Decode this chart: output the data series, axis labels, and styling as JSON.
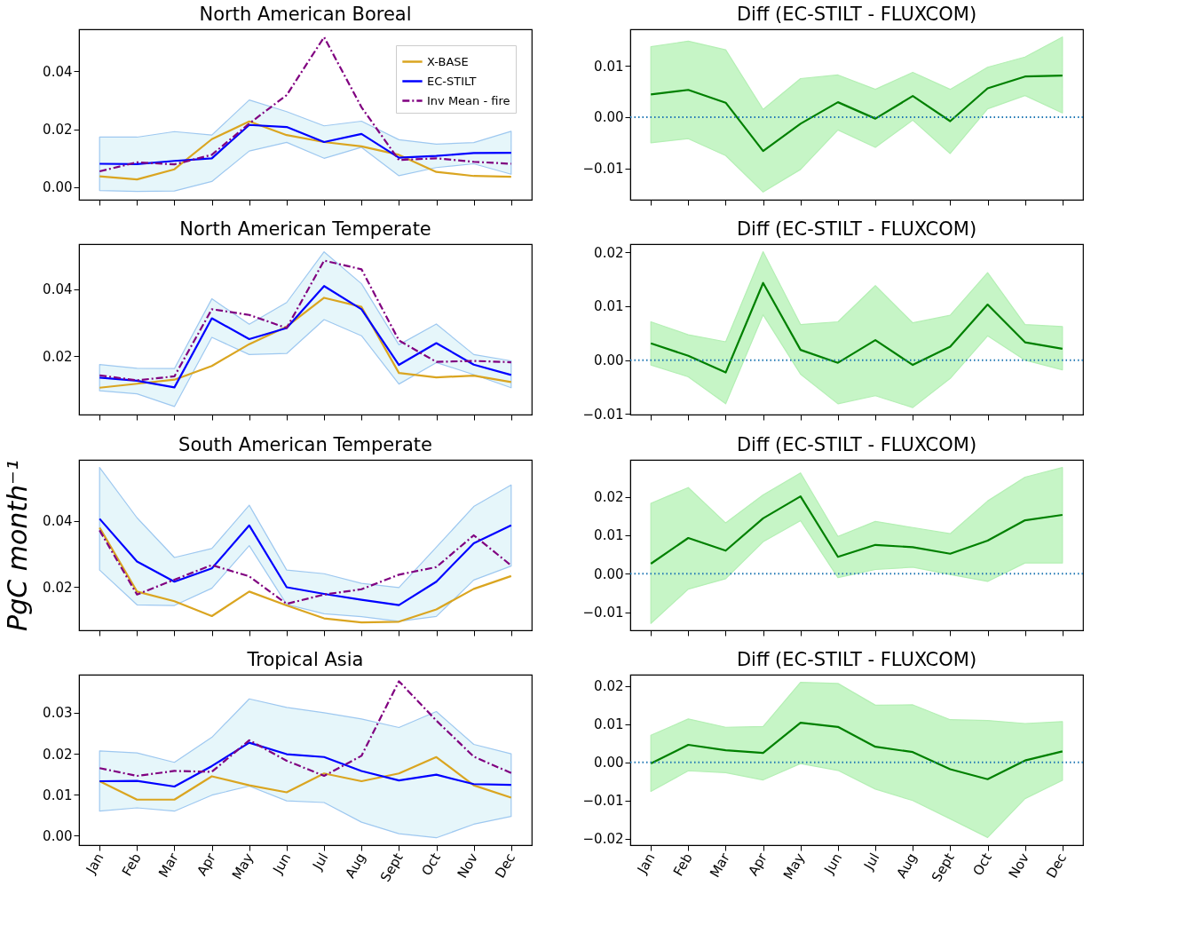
{
  "chart_data": [
    {
      "type": "line",
      "title": "North American Boreal",
      "categories": [
        null,
        null,
        null,
        null,
        null,
        null,
        null,
        null,
        null,
        null,
        null,
        null
      ],
      "ylim": [
        -0.0043,
        0.0545
      ],
      "yticks": [
        {
          "value": 0,
          "label": "0.00"
        },
        0.02,
        0.04
      ],
      "tick_labels": "y",
      "legend": "top right",
      "series": [
        {
          "name": "X-BASE",
          "color": "#daa520",
          "line_style": "solid",
          "values": [
            0.0038,
            0.0027,
            0.0062,
            0.0166,
            0.0227,
            0.018,
            0.0156,
            0.0141,
            0.0112,
            0.0053,
            0.0039,
            0.0036
          ]
        },
        {
          "name": "EC-STILT",
          "color": "#0000ff",
          "line_style": "solid",
          "values": [
            0.0081,
            0.008,
            0.0091,
            0.01,
            0.0215,
            0.0208,
            0.0156,
            0.0184,
            0.0102,
            0.0108,
            0.0118,
            0.0119
          ],
          "lower": [
            -0.0011,
            -0.0014,
            -0.0013,
            0.002,
            0.0125,
            0.0155,
            0.01,
            0.0138,
            0.004,
            0.0068,
            0.0081,
            0.0045
          ],
          "upper": [
            0.0173,
            0.0173,
            0.0192,
            0.018,
            0.0301,
            0.0261,
            0.0212,
            0.0228,
            0.0164,
            0.0149,
            0.0154,
            0.0193
          ]
        },
        {
          "name": "Inv Mean - fire",
          "color": "#800080",
          "line_style": "dashdot",
          "values": [
            0.0055,
            0.0086,
            0.0079,
            0.0112,
            0.022,
            0.0318,
            0.0518,
            0.0276,
            0.0094,
            0.01,
            0.0088,
            0.0081
          ]
        }
      ]
    },
    {
      "type": "line",
      "title": "Diff (EC-STILT - FLUXCOM)",
      "categories": [
        null,
        null,
        null,
        null,
        null,
        null,
        null,
        null,
        null,
        null,
        null,
        null
      ],
      "ylim": [
        -0.0161,
        0.0171
      ],
      "yticks": [
        {
          "value": -0.01,
          "label": "−0.01"
        },
        {
          "value": 0,
          "label": "0.00"
        },
        0.01
      ],
      "tick_labels": "y",
      "ref_lines": [
        {
          "axis": "y",
          "value": 0,
          "color": "#1f77b4",
          "line_style": "dotted"
        }
      ],
      "series": [
        {
          "color": "#008000",
          "line_style": "solid",
          "values": [
            0.0044,
            0.0053,
            0.0028,
            -0.0066,
            -0.0013,
            0.0029,
            -0.0003,
            0.0041,
            -0.0008,
            0.0056,
            0.0079,
            0.0081
          ],
          "lower": [
            -0.005,
            -0.0042,
            -0.0075,
            -0.0146,
            -0.0102,
            -0.0025,
            -0.0059,
            -0.0006,
            -0.0071,
            0.0016,
            0.0042,
            0.0008
          ],
          "upper": [
            0.0137,
            0.0148,
            0.0131,
            0.0015,
            0.0075,
            0.0082,
            0.0054,
            0.0087,
            0.0054,
            0.0097,
            0.0117,
            0.0156
          ]
        }
      ]
    },
    {
      "type": "line",
      "title": "North American Temperate",
      "categories": [
        null,
        null,
        null,
        null,
        null,
        null,
        null,
        null,
        null,
        null,
        null,
        null
      ],
      "ylim": [
        0.0026,
        0.0534
      ],
      "yticks": [
        0.02,
        0.04
      ],
      "tick_labels": "y",
      "series": [
        {
          "color": "#daa520",
          "line_style": "solid",
          "values": [
            0.0106,
            0.0118,
            0.013,
            0.0171,
            0.0236,
            0.0288,
            0.0374,
            0.0347,
            0.015,
            0.0137,
            0.0142,
            0.0123
          ]
        },
        {
          "color": "#0000ff",
          "line_style": "solid",
          "values": [
            0.0136,
            0.0127,
            0.0107,
            0.0313,
            0.0251,
            0.0284,
            0.0409,
            0.034,
            0.0174,
            0.0239,
            0.0175,
            0.0144
          ],
          "lower": [
            0.0097,
            0.0088,
            0.005,
            0.0256,
            0.0205,
            0.0208,
            0.0309,
            0.0261,
            0.0117,
            0.0181,
            0.0145,
            0.0106
          ],
          "upper": [
            0.0175,
            0.0164,
            0.0163,
            0.0371,
            0.0295,
            0.036,
            0.0511,
            0.0416,
            0.0234,
            0.0296,
            0.0205,
            0.0186
          ]
        },
        {
          "color": "#800080",
          "line_style": "dashdot",
          "values": [
            0.0143,
            0.0128,
            0.014,
            0.034,
            0.0323,
            0.0284,
            0.0485,
            0.0459,
            0.0247,
            0.0183,
            0.0186,
            0.0182
          ]
        }
      ]
    },
    {
      "type": "line",
      "title": "Diff (EC-STILT - FLUXCOM)",
      "categories": [
        null,
        null,
        null,
        null,
        null,
        null,
        null,
        null,
        null,
        null,
        null,
        null
      ],
      "ylim": [
        -0.0101,
        0.0215
      ],
      "yticks": [
        {
          "value": -0.01,
          "label": "−0.01"
        },
        {
          "value": 0,
          "label": "0.00"
        },
        0.01,
        0.02
      ],
      "tick_labels": "y",
      "ref_lines": [
        {
          "axis": "y",
          "value": 0,
          "color": "#1f77b4",
          "line_style": "dotted"
        }
      ],
      "series": [
        {
          "color": "#008000",
          "line_style": "solid",
          "values": [
            0.0031,
            0.0008,
            -0.0023,
            0.0143,
            0.0019,
            -0.0005,
            0.0037,
            -0.0009,
            0.0025,
            0.0103,
            0.0033,
            0.0021
          ],
          "lower": [
            -0.0009,
            -0.0031,
            -0.0081,
            0.0084,
            -0.0026,
            -0.0081,
            -0.0066,
            -0.0088,
            -0.0034,
            0.0045,
            0.0,
            -0.0018
          ],
          "upper": [
            0.0071,
            0.0047,
            0.0034,
            0.0201,
            0.0066,
            0.0071,
            0.0138,
            0.0069,
            0.0083,
            0.0162,
            0.0066,
            0.0062
          ]
        }
      ]
    },
    {
      "type": "line",
      "title": "South American Temperate",
      "ylabel": "PgC month⁻¹",
      "categories": [
        null,
        null,
        null,
        null,
        null,
        null,
        null,
        null,
        null,
        null,
        null,
        null
      ],
      "ylim": [
        0.0069,
        0.0584
      ],
      "yticks": [
        0.02,
        0.04
      ],
      "tick_labels": "y",
      "series": [
        {
          "color": "#daa520",
          "line_style": "solid",
          "values": [
            0.0379,
            0.0186,
            0.0157,
            0.0112,
            0.0186,
            0.0144,
            0.0105,
            0.0093,
            0.0095,
            0.0132,
            0.0194,
            0.0233
          ]
        },
        {
          "color": "#0000ff",
          "line_style": "solid",
          "values": [
            0.0406,
            0.0277,
            0.0216,
            0.0256,
            0.0386,
            0.0199,
            0.0179,
            0.0161,
            0.0145,
            0.0216,
            0.0332,
            0.0386
          ],
          "lower": [
            0.0251,
            0.0146,
            0.0144,
            0.0196,
            0.0325,
            0.0147,
            0.0119,
            0.011,
            0.0096,
            0.0111,
            0.0221,
            0.0263
          ],
          "upper": [
            0.0561,
            0.0409,
            0.0289,
            0.0316,
            0.0447,
            0.0251,
            0.024,
            0.0211,
            0.0198,
            0.032,
            0.0443,
            0.0508
          ]
        },
        {
          "color": "#800080",
          "line_style": "dashdot",
          "values": [
            0.0371,
            0.0177,
            0.0222,
            0.0266,
            0.0232,
            0.0149,
            0.0177,
            0.0193,
            0.0237,
            0.026,
            0.0356,
            0.0265
          ]
        }
      ]
    },
    {
      "type": "line",
      "title": "Diff (EC-STILT - FLUXCOM)",
      "categories": [
        null,
        null,
        null,
        null,
        null,
        null,
        null,
        null,
        null,
        null,
        null,
        null
      ],
      "ylim": [
        -0.0147,
        0.0296
      ],
      "yticks": [
        {
          "value": -0.01,
          "label": "−0.01"
        },
        {
          "value": 0,
          "label": "0.00"
        },
        0.01,
        0.02
      ],
      "tick_labels": "y",
      "ref_lines": [
        {
          "axis": "y",
          "value": 0,
          "color": "#1f77b4",
          "line_style": "dotted"
        }
      ],
      "series": [
        {
          "color": "#008000",
          "line_style": "solid",
          "values": [
            0.0026,
            0.0093,
            0.006,
            0.0144,
            0.0201,
            0.0044,
            0.0075,
            0.0069,
            0.0052,
            0.0086,
            0.0139,
            0.0153
          ],
          "lower": [
            -0.0129,
            -0.004,
            -0.0013,
            0.0083,
            0.0138,
            -0.001,
            0.0011,
            0.0017,
            -0.0002,
            -0.002,
            0.0028,
            0.0028
          ],
          "upper": [
            0.0183,
            0.0224,
            0.0132,
            0.0205,
            0.0262,
            0.0097,
            0.0136,
            0.012,
            0.0104,
            0.0189,
            0.0251,
            0.0276
          ]
        }
      ]
    },
    {
      "type": "line",
      "title": "Tropical Asia",
      "categories": [
        "Jan",
        "Feb",
        "Mar",
        "Apr",
        "May",
        "Jun",
        "Jul",
        "Aug",
        "Sept",
        "Oct",
        "Nov",
        "Dec"
      ],
      "ylim": [
        -0.0023,
        0.0393
      ],
      "yticks": [
        {
          "value": 0,
          "label": "0.00"
        },
        0.01,
        0.02,
        0.03
      ],
      "series": [
        {
          "color": "#daa520",
          "line_style": "solid",
          "values": [
            0.0133,
            0.0088,
            0.0088,
            0.0145,
            0.0123,
            0.0106,
            0.0152,
            0.0133,
            0.0152,
            0.0192,
            0.0123,
            0.0093
          ]
        },
        {
          "color": "#0000ff",
          "line_style": "solid",
          "values": [
            0.0133,
            0.0134,
            0.012,
            0.017,
            0.0227,
            0.0199,
            0.0192,
            0.0158,
            0.0135,
            0.0149,
            0.0126,
            0.0124
          ],
          "lower": [
            0.006,
            0.0068,
            0.006,
            0.0099,
            0.0121,
            0.0085,
            0.0081,
            0.0033,
            0.0005,
            -0.0005,
            0.0028,
            0.0047
          ],
          "upper": [
            0.0207,
            0.0202,
            0.0179,
            0.024,
            0.0334,
            0.0313,
            0.03,
            0.0285,
            0.0264,
            0.0303,
            0.0223,
            0.02
          ]
        },
        {
          "color": "#800080",
          "line_style": "dashdot",
          "values": [
            0.0165,
            0.0146,
            0.0158,
            0.0156,
            0.0233,
            0.0183,
            0.0146,
            0.0195,
            0.0377,
            0.0281,
            0.0193,
            0.0153
          ]
        }
      ]
    },
    {
      "type": "line",
      "title": "Diff (EC-STILT - FLUXCOM)",
      "categories": [
        "Jan",
        "Feb",
        "Mar",
        "Apr",
        "May",
        "Jun",
        "Jul",
        "Aug",
        "Sept",
        "Oct",
        "Nov",
        "Dec"
      ],
      "ylim": [
        -0.0217,
        0.023
      ],
      "yticks": [
        {
          "value": -0.02,
          "label": "−0.02"
        },
        {
          "value": -0.01,
          "label": "−0.01"
        },
        {
          "value": 0,
          "label": "0.00"
        },
        0.01,
        0.02
      ],
      "ref_lines": [
        {
          "axis": "y",
          "value": 0,
          "color": "#1f77b4",
          "line_style": "dotted"
        }
      ],
      "series": [
        {
          "color": "#008000",
          "line_style": "solid",
          "values": [
            -0.0003,
            0.0046,
            0.0032,
            0.0025,
            0.0104,
            0.0093,
            0.0041,
            0.0027,
            -0.0018,
            -0.0044,
            0.0005,
            0.0029
          ],
          "lower": [
            -0.0076,
            -0.0022,
            -0.0027,
            -0.0046,
            -0.0003,
            -0.0021,
            -0.007,
            -0.01,
            -0.0148,
            -0.0197,
            -0.0095,
            -0.0047
          ],
          "upper": [
            0.0071,
            0.0114,
            0.0092,
            0.0094,
            0.021,
            0.0207,
            0.015,
            0.0151,
            0.0112,
            0.011,
            0.0102,
            0.0107
          ]
        }
      ]
    }
  ]
}
